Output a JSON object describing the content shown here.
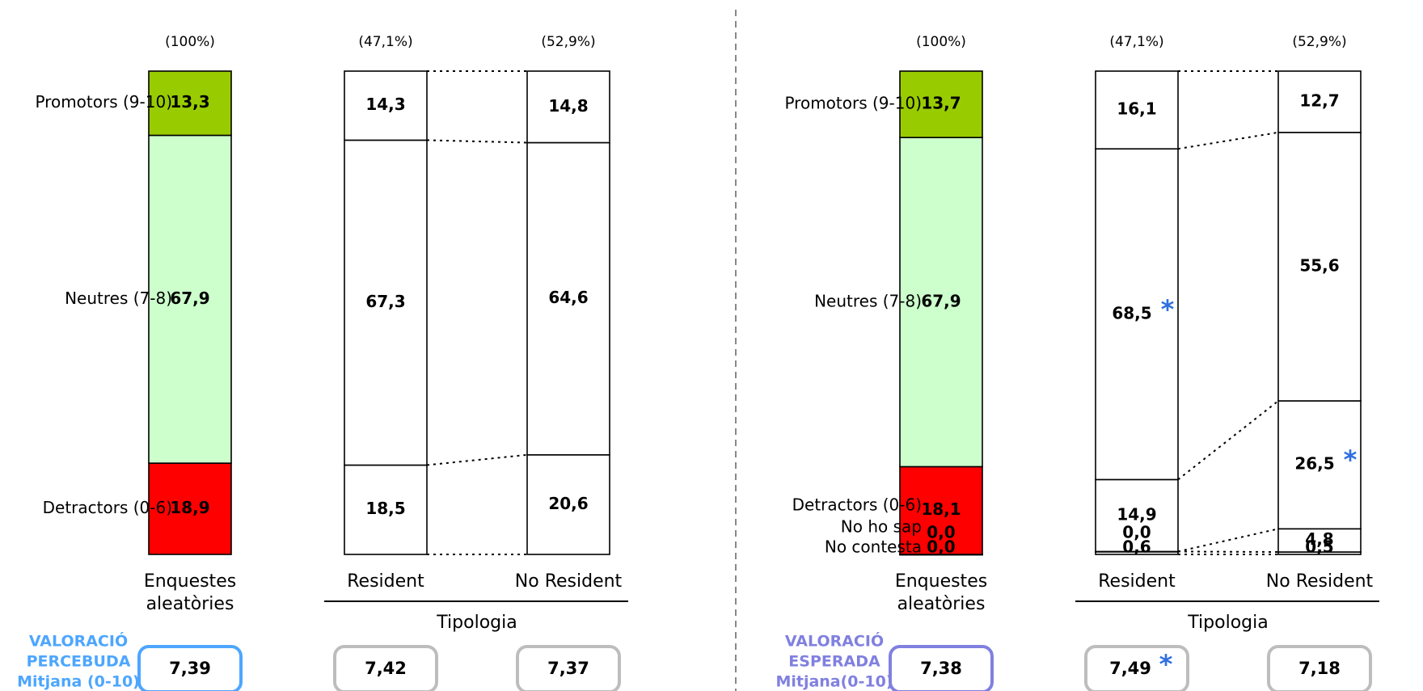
{
  "chart_data": [
    {
      "type": "bar",
      "stacked": true,
      "panel": "VALORACIÓ PERCEBUDA",
      "group_label": "Tipologia",
      "categories": [
        "Enquestes aleatòries",
        "Resident",
        "No Resident"
      ],
      "category_lines": [
        [
          "Enquestes",
          "aleatòries"
        ],
        [
          "Resident"
        ],
        [
          "No Resident"
        ]
      ],
      "shares": [
        "(100%)",
        "(47,1%)",
        "(52,9%)"
      ],
      "series": [
        {
          "name": "Detractors (0-6)",
          "values": [
            18.9,
            18.5,
            20.6
          ],
          "labels": [
            "18,9",
            "18,5",
            "20,6"
          ]
        },
        {
          "name": "Neutres (7-8)",
          "values": [
            67.9,
            67.3,
            64.6
          ],
          "labels": [
            "67,9",
            "67,3",
            "64,6"
          ]
        },
        {
          "name": "Promotors (9-10)",
          "values": [
            13.3,
            14.3,
            14.8
          ],
          "labels": [
            "13,3",
            "14,3",
            "14,8"
          ]
        }
      ],
      "significant": [],
      "mean": {
        "title_lines": [
          "VALORACIÓ",
          "PERCEBUDA",
          "Mitjana (0-10)"
        ],
        "values": [
          7.39,
          7.42,
          7.37
        ],
        "labels": [
          "7,39",
          "7,42",
          "7,37"
        ],
        "significant": [
          false,
          false,
          false
        ]
      },
      "colors": {
        "Promotors (9-10)": "#99cc00",
        "Neutres (7-8)": "#ccffcc",
        "Detractors (0-6)": "#ff0000",
        "accent": "#4da6ff"
      }
    },
    {
      "type": "bar",
      "stacked": true,
      "panel": "VALORACIÓ ESPERADA",
      "group_label": "Tipologia",
      "categories": [
        "Enquestes aleatòries",
        "Resident",
        "No Resident"
      ],
      "category_lines": [
        [
          "Enquestes",
          "aleatòries"
        ],
        [
          "Resident"
        ],
        [
          "No Resident"
        ]
      ],
      "shares": [
        "(100%)",
        "(47,1%)",
        "(52,9%)"
      ],
      "series": [
        {
          "name": "No contesta",
          "values": [
            0.0,
            0.6,
            0.5
          ],
          "labels": [
            "0,0",
            "0,6",
            "0,5"
          ]
        },
        {
          "name": "No ho sap",
          "values": [
            0.0,
            0.0,
            4.8
          ],
          "labels": [
            "0,0",
            "0,0",
            "4,8"
          ]
        },
        {
          "name": "Detractors (0-6)",
          "values": [
            18.1,
            14.9,
            26.5
          ],
          "labels": [
            "18,1",
            "14,9",
            "26,5"
          ]
        },
        {
          "name": "Neutres (7-8)",
          "values": [
            67.9,
            68.5,
            55.6
          ],
          "labels": [
            "67,9",
            "68,5",
            "55,6"
          ]
        },
        {
          "name": "Promotors (9-10)",
          "values": [
            13.7,
            16.1,
            12.7
          ],
          "labels": [
            "13,7",
            "16,1",
            "12,7"
          ]
        }
      ],
      "significant": [
        {
          "series": "Neutres (7-8)",
          "category": "Resident"
        },
        {
          "series": "Detractors (0-6)",
          "category": "No Resident"
        }
      ],
      "mean": {
        "title_lines": [
          "VALORACIÓ",
          "ESPERADA",
          "Mitjana(0-10)"
        ],
        "values": [
          7.38,
          7.49,
          7.18
        ],
        "labels": [
          "7,38",
          "7,49",
          "7,18"
        ],
        "significant": [
          false,
          true,
          false
        ]
      },
      "colors": {
        "Promotors (9-10)": "#99cc00",
        "Neutres (7-8)": "#ccffcc",
        "Detractors (0-6)": "#ff0000",
        "No ho sap": "#ff0000",
        "No contesta": "#ff0000",
        "accent": "#8080e0"
      }
    }
  ],
  "significance_marker": "*"
}
